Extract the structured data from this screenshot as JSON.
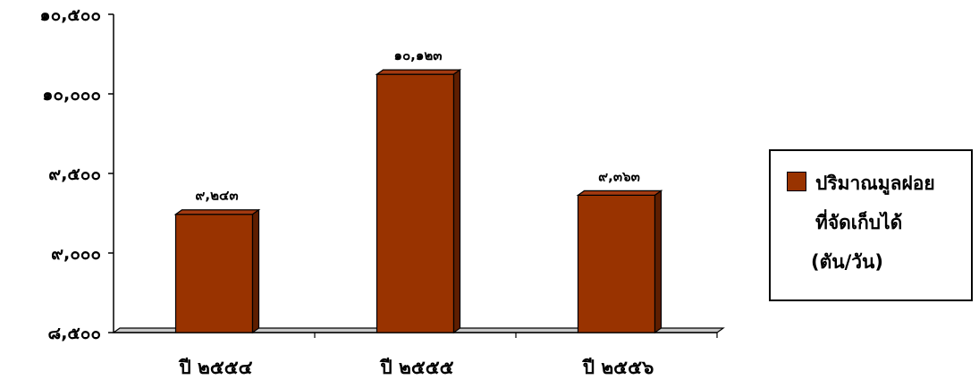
{
  "chart_data": {
    "type": "bar",
    "categories": [
      "ปี ๒๕๕๔",
      "ปี ๒๕๕๕",
      "ปี ๒๕๕๖"
    ],
    "values": [
      9243,
      10123,
      9363
    ],
    "data_labels": [
      "๙,๒๔๓",
      "๑๐,๑๒๓",
      "๙,๓๖๓"
    ],
    "yticks": [
      8500,
      9000,
      9500,
      10000,
      10500
    ],
    "ytick_labels": [
      "๘,๕๐๐",
      "๙,๐๐๐",
      "๙,๕๐๐",
      "๑๐,๐๐๐",
      "๑๐,๕๐๐"
    ],
    "ylim": [
      8500,
      10500
    ],
    "bar_color": "#993300",
    "series": [
      {
        "name": "ปริมาณมูลฝอยที่จัดเก็บได้ (ตัน/วัน)",
        "values": [
          9243,
          10123,
          9363
        ]
      }
    ],
    "legend": {
      "position": "right",
      "lines": [
        "ปริมาณมูลฝอย",
        "ที่จัดเก็บได้",
        "(ตัน/วัน)"
      ]
    },
    "grid": false,
    "style": "3d"
  }
}
